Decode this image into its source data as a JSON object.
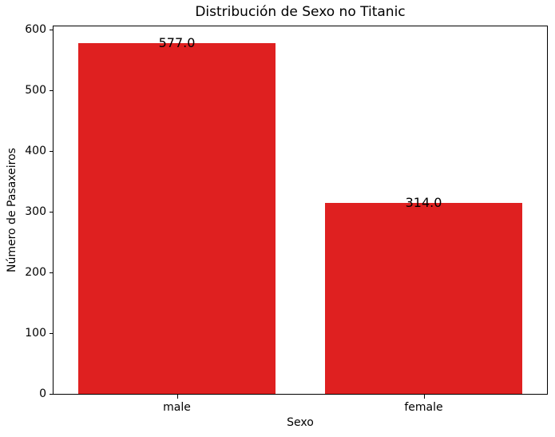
{
  "chart_data": {
    "type": "bar",
    "title": "Distribución de Sexo no Titanic",
    "xlabel": "Sexo",
    "ylabel": "Número de Pasaxeiros",
    "categories": [
      "male",
      "female"
    ],
    "values": [
      577,
      314
    ],
    "bar_labels": [
      "577.0",
      "314.0"
    ],
    "bar_color": "#df2020",
    "text_color": "#000000",
    "spine_color": "#000000",
    "background_color": "#ffffff",
    "ylim": [
      0,
      605
    ],
    "yticks": [
      0,
      100,
      200,
      300,
      400,
      500,
      600
    ],
    "bar_width_fraction": 0.8,
    "grid": false,
    "legend": null
  }
}
